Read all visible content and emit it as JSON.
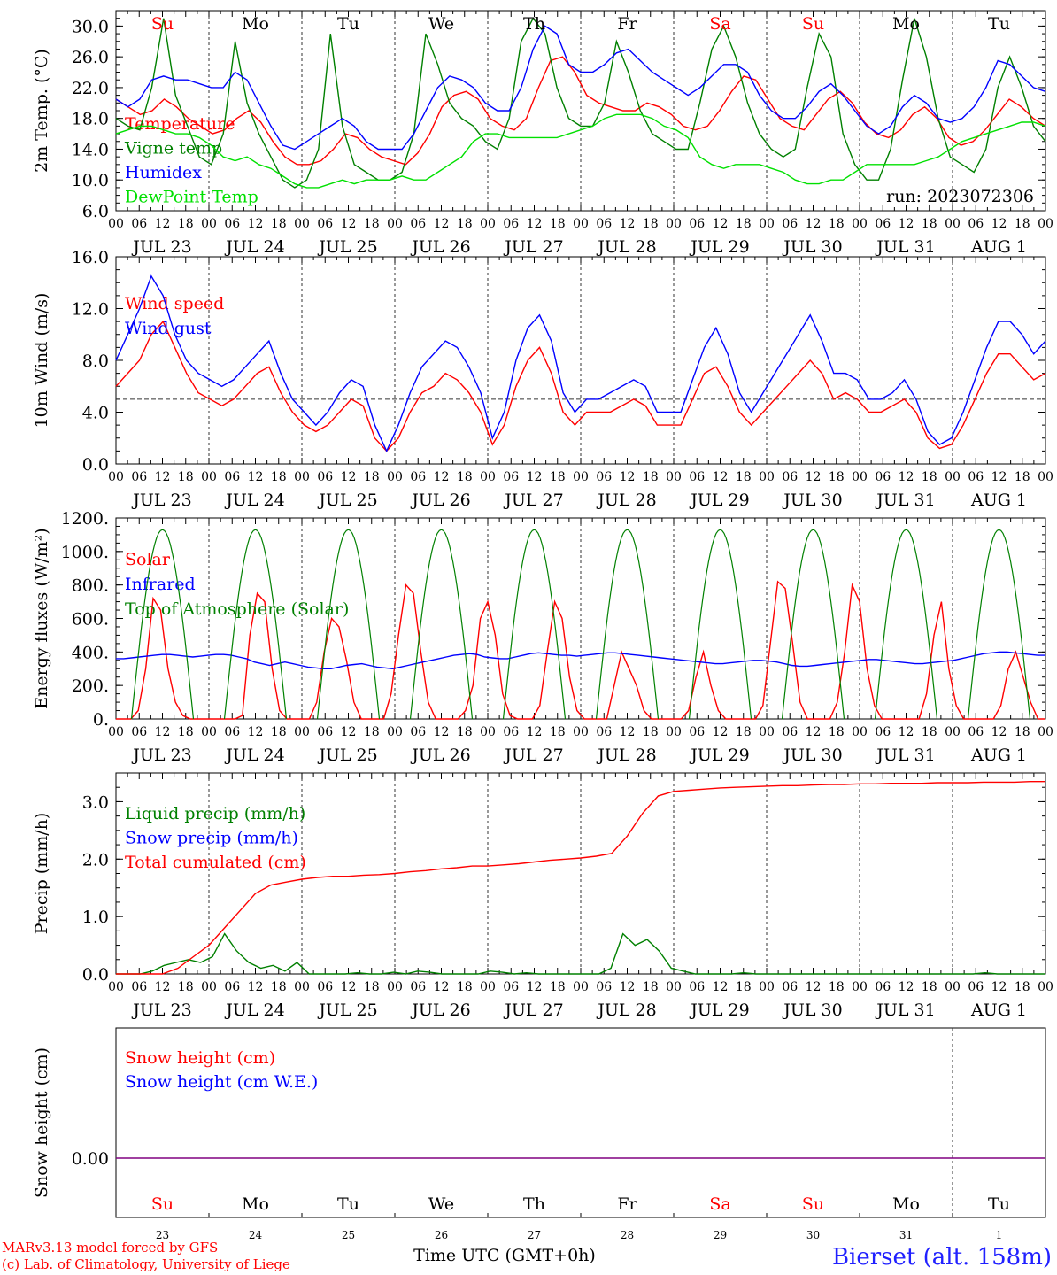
{
  "run_label": "run: 2023072306",
  "footer": {
    "model_line": "MARv3.13 model forced by GFS",
    "credit_line": "(c) Lab. of Climatology, University of Liege",
    "time_axis_label": "Time UTC (GMT+0h)",
    "station": "Bierset (alt. 158m)"
  },
  "day_names": [
    {
      "label": "Su",
      "weekend": true
    },
    {
      "label": "Mo",
      "weekend": false
    },
    {
      "label": "Tu",
      "weekend": false
    },
    {
      "label": "We",
      "weekend": false
    },
    {
      "label": "Th",
      "weekend": false
    },
    {
      "label": "Fr",
      "weekend": false
    },
    {
      "label": "Sa",
      "weekend": true
    },
    {
      "label": "Su",
      "weekend": true
    },
    {
      "label": "Mo",
      "weekend": false
    },
    {
      "label": "Tu",
      "weekend": false
    }
  ],
  "date_labels": [
    "JUL 23",
    "JUL 24",
    "JUL 25",
    "JUL 26",
    "JUL 27",
    "JUL 28",
    "JUL 29",
    "JUL 30",
    "JUL 31",
    "AUG  1"
  ],
  "day_numbers": [
    "23",
    "24",
    "25",
    "26",
    "27",
    "28",
    "29",
    "30",
    "31",
    "1"
  ],
  "hour_ticks": [
    "00",
    "06",
    "12",
    "18"
  ],
  "colors": {
    "red": "#ff0000",
    "blue": "#0000ff",
    "green": "#008000",
    "lightgreen": "#00e000",
    "purple": "#800080"
  },
  "chart_data": [
    {
      "type": "line",
      "ylabel": "2m Temp. (°C)",
      "ylim": [
        6,
        32
      ],
      "yticks": [
        "6.0",
        "10.0",
        "14.0",
        "18.0",
        "22.0",
        "26.0",
        "30.0"
      ],
      "x": "hours since JUL 23 00 UTC, 3-hourly",
      "series": [
        {
          "name": "Temperature",
          "color": "red",
          "values": [
            20.5,
            19.5,
            18.5,
            19,
            20.5,
            19.5,
            18,
            17,
            16,
            16.5,
            18,
            19,
            17.5,
            15,
            13,
            12,
            12,
            12.5,
            14,
            16,
            15.5,
            14,
            13,
            12.5,
            12,
            13.5,
            16,
            19.5,
            21,
            21.5,
            20.5,
            18,
            17,
            16.5,
            18,
            22,
            25.5,
            26,
            24,
            21,
            20,
            19.5,
            19,
            19,
            20,
            19.5,
            18.5,
            17,
            16.5,
            17,
            19,
            21.5,
            23.5,
            23,
            20.5,
            18,
            17,
            16.5,
            18.5,
            20.5,
            21.5,
            20,
            17.5,
            16,
            15.5,
            16.5,
            18.5,
            19.5,
            18,
            15.5,
            14.5,
            15,
            16.5,
            18.5,
            20.5,
            19.5,
            18,
            17
          ]
        },
        {
          "name": "Vigne temp",
          "color": "green",
          "values": [
            18,
            17,
            16.5,
            22,
            31,
            21,
            17,
            13,
            12,
            16,
            28,
            20,
            16,
            13,
            10,
            9,
            10,
            14,
            29,
            17,
            12,
            11,
            10,
            10,
            11,
            16,
            29,
            25,
            20,
            18,
            17,
            15,
            14,
            18,
            28,
            31,
            29,
            22,
            18,
            17,
            17,
            20,
            28,
            24,
            19,
            16,
            15,
            14,
            14,
            20,
            27,
            30,
            26,
            20,
            16,
            14,
            13,
            14,
            22,
            29,
            26,
            16,
            12,
            10,
            10,
            14,
            23,
            31,
            26,
            18,
            13,
            12,
            11,
            14,
            22,
            26,
            22,
            17,
            15
          ]
        },
        {
          "name": "Humidex",
          "color": "blue",
          "values": [
            20.5,
            19.5,
            20.5,
            23,
            23.5,
            23,
            23,
            22.5,
            22,
            22,
            24,
            23,
            20,
            17,
            14.5,
            14,
            15,
            16,
            17,
            18,
            17,
            15,
            14,
            14,
            14,
            16,
            19,
            22,
            23.5,
            23,
            22,
            20,
            19,
            19,
            22,
            27,
            30,
            29,
            25,
            24,
            24,
            25,
            26.5,
            27,
            25.5,
            24,
            23,
            22,
            21,
            22,
            23.5,
            25,
            25,
            24,
            21,
            19,
            18,
            18,
            19.5,
            21.5,
            22.5,
            21,
            19,
            17,
            16,
            17,
            19.5,
            21,
            20,
            18,
            17.5,
            18,
            19.5,
            22,
            25.5,
            25,
            23.5,
            22,
            21.5
          ]
        },
        {
          "name": "DewPoint Temp",
          "color": "lightgreen",
          "values": [
            16,
            16.5,
            17,
            17,
            16.5,
            16,
            16,
            15.5,
            14.5,
            13,
            12.5,
            13,
            12,
            11.5,
            10.5,
            9.5,
            9,
            9,
            9.5,
            10,
            9.5,
            10,
            10,
            10,
            10.5,
            10,
            10,
            11,
            12,
            13,
            15,
            16,
            16,
            15.5,
            15.5,
            15.5,
            15.5,
            15.5,
            16,
            16.5,
            17,
            18,
            18.5,
            18.5,
            18.5,
            18,
            17,
            16.5,
            15.5,
            13,
            12,
            11.5,
            12,
            12,
            12,
            11.5,
            11,
            10,
            9.5,
            9.5,
            10,
            10,
            11,
            12,
            12,
            12,
            12,
            12,
            12.5,
            13,
            14,
            15,
            15.5,
            16,
            16.5,
            17,
            17.5,
            17.5,
            17
          ]
        }
      ]
    },
    {
      "type": "line",
      "ylabel": "10m Wind (m/s)",
      "ylim": [
        0,
        16
      ],
      "yticks": [
        "0.0",
        "4.0",
        "8.0",
        "12.0",
        "16.0"
      ],
      "reference_line": 5,
      "series": [
        {
          "name": "Wind speed",
          "color": "red",
          "values": [
            6,
            7,
            8,
            10,
            11,
            9,
            7,
            5.5,
            5,
            4.5,
            5,
            6,
            7,
            7.5,
            5.5,
            4,
            3,
            2.5,
            3,
            4,
            5,
            4.5,
            2,
            1,
            2,
            4,
            5.5,
            6,
            7,
            6.5,
            5.5,
            4,
            1.5,
            3,
            6,
            8,
            9,
            7,
            4,
            3,
            4,
            4,
            4,
            4.5,
            5,
            4.5,
            3,
            3,
            3,
            5,
            7,
            7.5,
            6,
            4,
            3,
            4,
            5,
            6,
            7,
            8,
            7,
            5,
            5.5,
            5,
            4,
            4,
            4.5,
            5,
            4,
            2,
            1.2,
            1.5,
            3,
            5,
            7,
            8.5,
            8.5,
            7.5,
            6.5,
            7
          ]
        },
        {
          "name": "Wind gust",
          "color": "blue",
          "values": [
            8,
            10,
            12,
            14.5,
            13,
            10,
            8,
            7,
            6.5,
            6,
            6.5,
            7.5,
            8.5,
            9.5,
            7,
            5,
            4,
            3,
            4,
            5.5,
            6.5,
            6,
            3,
            1,
            3,
            5.5,
            7.5,
            8.5,
            9.5,
            9,
            7.5,
            5.5,
            2,
            4,
            8,
            10.5,
            11.5,
            9.5,
            5.5,
            4,
            5,
            5,
            5.5,
            6,
            6.5,
            6,
            4,
            4,
            4,
            6.5,
            9,
            10.5,
            8.5,
            5.5,
            4,
            5.5,
            7,
            8.5,
            10,
            11.5,
            9.5,
            7,
            7,
            6.5,
            5,
            5,
            5.5,
            6.5,
            5,
            2.5,
            1.5,
            2,
            4,
            6.5,
            9,
            11,
            11,
            10,
            8.5,
            9.5
          ]
        }
      ]
    },
    {
      "type": "line",
      "ylabel": "Energy fluxes (W/m²)",
      "ylim": [
        0,
        1200
      ],
      "yticks": [
        "0.",
        "200.",
        "400.",
        "600.",
        "800.",
        "1000.",
        "1200."
      ],
      "series": [
        {
          "name": "Solar",
          "color": "red",
          "values": [
            0,
            0,
            0,
            50,
            300,
            720,
            650,
            300,
            100,
            20,
            0,
            0,
            0,
            0,
            0,
            0,
            0,
            20,
            500,
            750,
            700,
            300,
            50,
            0,
            0,
            0,
            0,
            100,
            400,
            600,
            550,
            350,
            100,
            0,
            0,
            0,
            0,
            150,
            500,
            800,
            750,
            400,
            100,
            0,
            0,
            0,
            0,
            50,
            200,
            600,
            700,
            500,
            150,
            20,
            0,
            0,
            0,
            80,
            400,
            700,
            600,
            250,
            50,
            0,
            0,
            0,
            0,
            200,
            400,
            300,
            200,
            50,
            0,
            0,
            0,
            0,
            0,
            50,
            250,
            400,
            200,
            50,
            0,
            0,
            0,
            0,
            0,
            80,
            450,
            820,
            780,
            450,
            100,
            0,
            0,
            0,
            0,
            100,
            400,
            800,
            700,
            300,
            80,
            0,
            0,
            0,
            0,
            0,
            0,
            150,
            500,
            700,
            300,
            80,
            0,
            0,
            0,
            0,
            0,
            80,
            300,
            400,
            250,
            100,
            0,
            0
          ]
        },
        {
          "name": "Infrared",
          "color": "blue",
          "values": [
            360,
            360,
            365,
            370,
            375,
            380,
            385,
            385,
            380,
            375,
            370,
            375,
            380,
            385,
            385,
            380,
            370,
            360,
            340,
            330,
            320,
            330,
            340,
            330,
            320,
            310,
            305,
            300,
            300,
            310,
            320,
            325,
            330,
            320,
            310,
            305,
            300,
            310,
            320,
            330,
            340,
            350,
            360,
            370,
            380,
            385,
            390,
            385,
            370,
            365,
            360,
            360,
            370,
            380,
            390,
            395,
            390,
            385,
            380,
            380,
            375,
            380,
            385,
            390,
            395,
            395,
            390,
            385,
            380,
            375,
            370,
            365,
            360,
            355,
            350,
            345,
            340,
            335,
            330,
            330,
            335,
            340,
            345,
            350,
            350,
            345,
            340,
            330,
            320,
            315,
            315,
            320,
            325,
            330,
            335,
            340,
            345,
            350,
            355,
            355,
            350,
            345,
            340,
            335,
            330,
            330,
            335,
            340,
            345,
            350,
            360,
            370,
            380,
            390,
            395,
            400,
            400,
            395,
            390,
            385,
            380,
            380
          ]
        },
        {
          "name": "Top of Atmosphere (Solar)",
          "color": "green",
          "peak": 1130
        }
      ]
    },
    {
      "type": "line",
      "ylabel": "Precip (mm/h)",
      "ylim": [
        0,
        3.5
      ],
      "yticks": [
        "0.0",
        "1.0",
        "2.0",
        "3.0"
      ],
      "series": [
        {
          "name": "Liquid precip (mm/h)",
          "color": "green",
          "values": [
            0,
            0,
            0,
            0.05,
            0.15,
            0.2,
            0.25,
            0.2,
            0.3,
            0.7,
            0.4,
            0.2,
            0.1,
            0.15,
            0.05,
            0.2,
            0,
            0,
            0,
            0,
            0.02,
            0,
            0,
            0.03,
            0,
            0.05,
            0.03,
            0,
            0,
            0,
            0,
            0.05,
            0.03,
            0,
            0.02,
            0,
            0,
            0,
            0,
            0,
            0,
            0.1,
            0.7,
            0.5,
            0.6,
            0.4,
            0.1,
            0.05,
            0,
            0,
            0,
            0,
            0.02,
            0,
            0,
            0,
            0,
            0,
            0,
            0,
            0,
            0,
            0,
            0,
            0,
            0,
            0,
            0,
            0,
            0,
            0,
            0,
            0.02,
            0,
            0,
            0,
            0,
            0
          ]
        },
        {
          "name": "Snow precip (mm/h)",
          "color": "blue",
          "values": [
            0,
            0
          ]
        },
        {
          "name": "Total cumulated (cm)",
          "color": "red",
          "values": [
            0,
            0,
            0,
            0,
            0.1,
            0.3,
            0.5,
            0.8,
            1.1,
            1.4,
            1.55,
            1.6,
            1.65,
            1.68,
            1.7,
            1.7,
            1.72,
            1.73,
            1.75,
            1.78,
            1.8,
            1.83,
            1.85,
            1.88,
            1.88,
            1.9,
            1.92,
            1.95,
            1.98,
            2.0,
            2.02,
            2.05,
            2.1,
            2.4,
            2.8,
            3.1,
            3.18,
            3.2,
            3.22,
            3.24,
            3.25,
            3.26,
            3.27,
            3.28,
            3.28,
            3.29,
            3.3,
            3.3,
            3.31,
            3.31,
            3.32,
            3.32,
            3.32,
            3.33,
            3.33,
            3.33,
            3.34,
            3.34,
            3.34,
            3.35,
            3.35
          ]
        }
      ]
    },
    {
      "type": "line",
      "ylabel": "Snow height (cm)",
      "yticks": [
        "0.00"
      ],
      "series": [
        {
          "name": "Snow height (cm)",
          "color": "red",
          "values": [
            0,
            0
          ]
        },
        {
          "name": "Snow height (cm W.E.)",
          "color": "blue",
          "values": [
            0,
            0
          ]
        }
      ]
    }
  ]
}
